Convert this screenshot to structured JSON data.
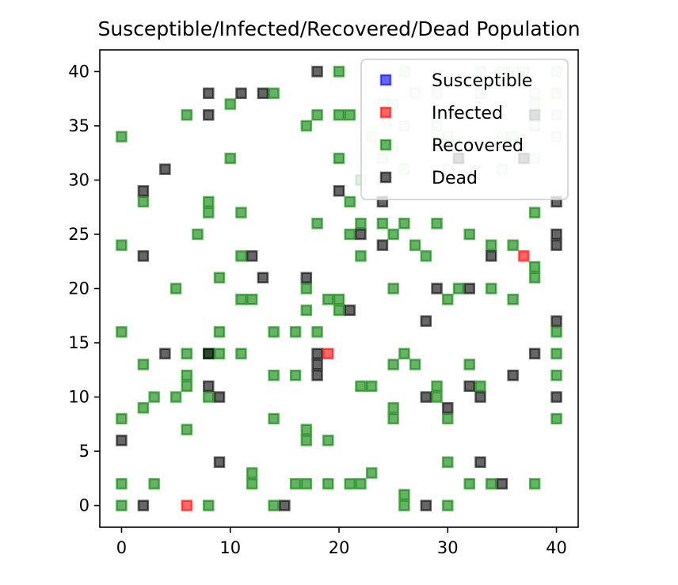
{
  "chart_data": {
    "type": "scatter",
    "title": "Susceptible/Infected/Recovered/Dead Population",
    "xlabel": "",
    "ylabel": "",
    "xlim": [
      -2,
      42
    ],
    "ylim": [
      -2,
      42
    ],
    "xticks": [
      0,
      10,
      20,
      30,
      40
    ],
    "yticks": [
      0,
      5,
      10,
      15,
      20,
      25,
      30,
      35,
      40
    ],
    "grid": false,
    "legend_position": "top-right",
    "marker": "square",
    "series": [
      {
        "name": "Susceptible",
        "color": "#0000ff",
        "points": []
      },
      {
        "name": "Infected",
        "color": "#ff0000",
        "points": [
          [
            6,
            0
          ],
          [
            19,
            14
          ],
          [
            37,
            23
          ]
        ]
      },
      {
        "name": "Recovered",
        "color": "#008000",
        "points": [
          [
            0,
            34
          ],
          [
            0,
            24
          ],
          [
            0,
            16
          ],
          [
            0,
            8
          ],
          [
            0,
            2
          ],
          [
            0,
            0
          ],
          [
            2,
            28
          ],
          [
            2,
            13
          ],
          [
            2,
            9
          ],
          [
            3,
            10
          ],
          [
            3,
            2
          ],
          [
            5,
            20
          ],
          [
            5,
            10
          ],
          [
            6,
            36
          ],
          [
            6,
            14
          ],
          [
            6,
            12
          ],
          [
            6,
            11
          ],
          [
            6,
            7
          ],
          [
            7,
            25
          ],
          [
            8,
            28
          ],
          [
            8,
            27
          ],
          [
            8,
            14
          ],
          [
            8,
            10
          ],
          [
            8,
            0
          ],
          [
            9,
            21
          ],
          [
            9,
            16
          ],
          [
            9,
            14
          ],
          [
            10,
            37
          ],
          [
            10,
            32
          ],
          [
            11,
            27
          ],
          [
            11,
            23
          ],
          [
            11,
            19
          ],
          [
            11,
            14
          ],
          [
            12,
            19
          ],
          [
            12,
            3
          ],
          [
            12,
            2
          ],
          [
            14,
            38
          ],
          [
            14,
            16
          ],
          [
            14,
            12
          ],
          [
            14,
            8
          ],
          [
            14,
            0
          ],
          [
            16,
            16
          ],
          [
            16,
            12
          ],
          [
            16,
            2
          ],
          [
            17,
            35
          ],
          [
            17,
            20
          ],
          [
            17,
            18
          ],
          [
            17,
            7
          ],
          [
            17,
            6
          ],
          [
            17,
            2
          ],
          [
            18,
            36
          ],
          [
            18,
            26
          ],
          [
            18,
            16
          ],
          [
            19,
            19
          ],
          [
            19,
            6
          ],
          [
            19,
            2
          ],
          [
            20,
            40
          ],
          [
            20,
            36
          ],
          [
            20,
            32
          ],
          [
            20,
            19
          ],
          [
            20,
            18
          ],
          [
            21,
            36
          ],
          [
            21,
            28
          ],
          [
            21,
            25
          ],
          [
            21,
            2
          ],
          [
            22,
            26
          ],
          [
            22,
            23
          ],
          [
            22,
            11
          ],
          [
            22,
            2
          ],
          [
            23,
            11
          ],
          [
            23,
            3
          ],
          [
            24,
            26
          ],
          [
            25,
            25
          ],
          [
            25,
            20
          ],
          [
            25,
            13
          ],
          [
            25,
            9
          ],
          [
            25,
            8
          ],
          [
            26,
            26
          ],
          [
            26,
            14
          ],
          [
            26,
            1
          ],
          [
            26,
            0
          ],
          [
            27,
            24
          ],
          [
            27,
            13
          ],
          [
            28,
            23
          ],
          [
            29,
            26
          ],
          [
            29,
            11
          ],
          [
            29,
            10
          ],
          [
            30,
            19
          ],
          [
            30,
            8
          ],
          [
            30,
            4
          ],
          [
            30,
            0
          ],
          [
            31,
            20
          ],
          [
            32,
            25
          ],
          [
            32,
            13
          ],
          [
            32,
            2
          ],
          [
            33,
            11
          ],
          [
            34,
            24
          ],
          [
            34,
            20
          ],
          [
            34,
            2
          ],
          [
            36,
            24
          ],
          [
            36,
            19
          ],
          [
            38,
            27
          ],
          [
            38,
            22
          ],
          [
            38,
            21
          ],
          [
            38,
            2
          ],
          [
            40,
            16
          ],
          [
            40,
            14
          ],
          [
            40,
            12
          ],
          [
            40,
            8
          ]
        ]
      },
      {
        "name": "Dead",
        "color": "#000000",
        "points": [
          [
            0,
            6
          ],
          [
            2,
            29
          ],
          [
            2,
            23
          ],
          [
            2,
            0
          ],
          [
            4,
            31
          ],
          [
            4,
            14
          ],
          [
            8,
            38
          ],
          [
            8,
            36
          ],
          [
            8,
            14
          ],
          [
            8,
            11
          ],
          [
            9,
            10
          ],
          [
            9,
            4
          ],
          [
            11,
            38
          ],
          [
            12,
            23
          ],
          [
            13,
            38
          ],
          [
            13,
            21
          ],
          [
            15,
            0
          ],
          [
            17,
            21
          ],
          [
            18,
            40
          ],
          [
            18,
            14
          ],
          [
            18,
            13
          ],
          [
            18,
            12
          ],
          [
            21,
            18
          ],
          [
            20,
            29
          ],
          [
            22,
            25
          ],
          [
            24,
            28
          ],
          [
            24,
            24
          ],
          [
            28,
            17
          ],
          [
            28,
            10
          ],
          [
            28,
            0
          ],
          [
            29,
            20
          ],
          [
            30,
            9
          ],
          [
            31,
            32
          ],
          [
            32,
            20
          ],
          [
            32,
            11
          ],
          [
            33,
            10
          ],
          [
            33,
            4
          ],
          [
            34,
            23
          ],
          [
            35,
            2
          ],
          [
            36,
            12
          ],
          [
            37,
            32
          ],
          [
            38,
            14
          ],
          [
            38,
            36
          ],
          [
            40,
            28
          ],
          [
            40,
            25
          ],
          [
            40,
            24
          ],
          [
            40,
            17
          ],
          [
            40,
            10
          ]
        ]
      }
    ],
    "faint_markers": {
      "color": "#008000",
      "points": [
        [
          24,
          37
        ],
        [
          25,
          37
        ],
        [
          26,
          40
        ],
        [
          26,
          35
        ],
        [
          27,
          38
        ],
        [
          29,
          38
        ],
        [
          30,
          34
        ],
        [
          30,
          33
        ],
        [
          33,
          40
        ],
        [
          33,
          38
        ],
        [
          35,
          40
        ],
        [
          36,
          40
        ],
        [
          35,
          34
        ],
        [
          36,
          34
        ],
        [
          37,
          40
        ],
        [
          38,
          38
        ],
        [
          38,
          37
        ],
        [
          38,
          35
        ],
        [
          40,
          40
        ],
        [
          40,
          38
        ],
        [
          40,
          34
        ],
        [
          40,
          36
        ],
        [
          23,
          34
        ],
        [
          24,
          32
        ],
        [
          31,
          36
        ],
        [
          32,
          36
        ],
        [
          26,
          31
        ],
        [
          30,
          31
        ],
        [
          38,
          32
        ],
        [
          35,
          31
        ],
        [
          29,
          35
        ],
        [
          22,
          30
        ],
        [
          24,
          30
        ],
        [
          25,
          33
        ]
      ]
    }
  }
}
